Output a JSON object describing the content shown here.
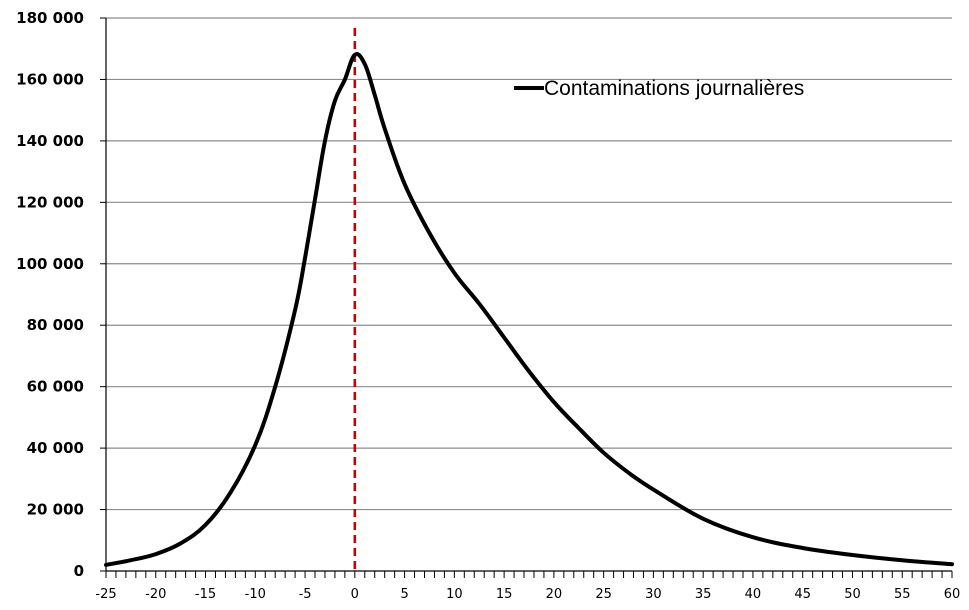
{
  "chart_data": {
    "type": "line",
    "title": "",
    "xlabel": "",
    "ylabel": "",
    "xlim": [
      -25,
      60
    ],
    "ylim": [
      0,
      180000
    ],
    "grid": true,
    "legend_position": "top-right",
    "y_ticks": [
      {
        "value": 0,
        "label": "0"
      },
      {
        "value": 20000,
        "label": "20 000"
      },
      {
        "value": 40000,
        "label": "40 000"
      },
      {
        "value": 60000,
        "label": "60 000"
      },
      {
        "value": 80000,
        "label": "80 000"
      },
      {
        "value": 100000,
        "label": "100 000"
      },
      {
        "value": 120000,
        "label": "120 000"
      },
      {
        "value": 140000,
        "label": "140 000"
      },
      {
        "value": 160000,
        "label": "160 000"
      },
      {
        "value": 180000,
        "label": "180 000"
      }
    ],
    "x_ticks": [
      {
        "value": -25,
        "label": "-25"
      },
      {
        "value": -20,
        "label": "-20"
      },
      {
        "value": -15,
        "label": "-15"
      },
      {
        "value": -10,
        "label": "-10"
      },
      {
        "value": -5,
        "label": "-5"
      },
      {
        "value": 0,
        "label": "0"
      },
      {
        "value": 5,
        "label": "5"
      },
      {
        "value": 10,
        "label": "10"
      },
      {
        "value": 15,
        "label": "15"
      },
      {
        "value": 20,
        "label": "20"
      },
      {
        "value": 25,
        "label": "25"
      },
      {
        "value": 30,
        "label": "30"
      },
      {
        "value": 35,
        "label": "35"
      },
      {
        "value": 40,
        "label": "40"
      },
      {
        "value": 45,
        "label": "45"
      },
      {
        "value": 50,
        "label": "50"
      },
      {
        "value": 55,
        "label": "55"
      },
      {
        "value": 60,
        "label": "60"
      }
    ],
    "reference_line": {
      "x": 0,
      "color": "#cc0000",
      "style": "dashed"
    },
    "series": [
      {
        "name": "Contaminations journalières",
        "color": "#000000",
        "x": [
          -25,
          -22.5,
          -20,
          -17.5,
          -15,
          -12.5,
          -10,
          -8,
          -6,
          -5,
          -4,
          -3,
          -2,
          -1,
          0,
          1,
          2,
          3,
          5,
          7.5,
          10,
          12.5,
          15,
          17.5,
          20,
          22.5,
          25,
          27.5,
          30,
          35,
          40,
          45,
          50,
          55,
          60
        ],
        "values": [
          2000,
          3500,
          5500,
          9000,
          15000,
          25500,
          41000,
          60000,
          85000,
          102000,
          121000,
          140000,
          153000,
          160000,
          168000,
          165000,
          155000,
          144000,
          126000,
          110000,
          97000,
          87000,
          76000,
          65000,
          55000,
          46500,
          38500,
          32000,
          26500,
          17000,
          11000,
          7500,
          5200,
          3500,
          2200
        ]
      }
    ]
  }
}
